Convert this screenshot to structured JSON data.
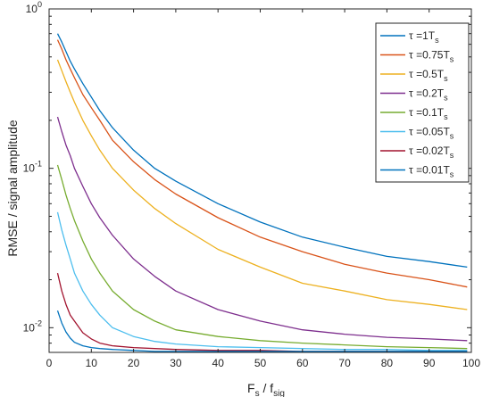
{
  "chart_data": {
    "type": "line",
    "title": "",
    "xlabel": "F",
    "xlabel_sub1": "s",
    "xlabel_mid": " / f",
    "xlabel_sub2": "sig",
    "ylabel": "RMSE / signal amplitude",
    "xlim": [
      0,
      100
    ],
    "ylim": [
      0.007,
      1
    ],
    "yscale": "log",
    "grid": false,
    "legend_position": "top-right",
    "x_ticks": [
      0,
      10,
      20,
      30,
      40,
      50,
      60,
      70,
      80,
      90,
      100
    ],
    "y_ticks": [
      {
        "value": 0.01,
        "base": "10",
        "exp": "-2"
      },
      {
        "value": 0.1,
        "base": "10",
        "exp": "-1"
      },
      {
        "value": 1,
        "base": "10",
        "exp": "0"
      }
    ],
    "x": [
      2,
      3,
      4,
      5,
      6,
      8,
      10,
      12,
      15,
      20,
      25,
      30,
      40,
      50,
      60,
      70,
      80,
      90,
      99
    ],
    "series": [
      {
        "name": "τ =1T",
        "name_sub": "s",
        "color": "#0072BD",
        "values": [
          0.7,
          0.62,
          0.54,
          0.47,
          0.42,
          0.34,
          0.28,
          0.23,
          0.18,
          0.13,
          0.1,
          0.083,
          0.06,
          0.046,
          0.037,
          0.032,
          0.028,
          0.026,
          0.024
        ]
      },
      {
        "name": "τ =0.75T",
        "name_sub": "s",
        "color": "#D95319",
        "values": [
          0.64,
          0.56,
          0.48,
          0.42,
          0.37,
          0.29,
          0.24,
          0.2,
          0.15,
          0.11,
          0.085,
          0.069,
          0.049,
          0.037,
          0.03,
          0.025,
          0.022,
          0.02,
          0.018
        ]
      },
      {
        "name": "τ =0.5T",
        "name_sub": "s",
        "color": "#EDB120",
        "values": [
          0.48,
          0.41,
          0.35,
          0.3,
          0.26,
          0.2,
          0.16,
          0.13,
          0.1,
          0.073,
          0.056,
          0.045,
          0.031,
          0.024,
          0.019,
          0.017,
          0.015,
          0.014,
          0.013
        ]
      },
      {
        "name": "τ =0.2T",
        "name_sub": "s",
        "color": "#7E2F8E",
        "values": [
          0.21,
          0.17,
          0.14,
          0.12,
          0.1,
          0.077,
          0.06,
          0.049,
          0.038,
          0.027,
          0.021,
          0.017,
          0.013,
          0.011,
          0.0097,
          0.0091,
          0.0087,
          0.0085,
          0.0083
        ]
      },
      {
        "name": "τ =0.1T",
        "name_sub": "s",
        "color": "#77AC30",
        "values": [
          0.105,
          0.085,
          0.068,
          0.056,
          0.047,
          0.035,
          0.027,
          0.022,
          0.017,
          0.013,
          0.011,
          0.0097,
          0.0088,
          0.0083,
          0.008,
          0.0078,
          0.0076,
          0.0075,
          0.0074
        ]
      },
      {
        "name": "τ =0.05T",
        "name_sub": "s",
        "color": "#4DBEEE",
        "values": [
          0.053,
          0.041,
          0.033,
          0.027,
          0.022,
          0.017,
          0.014,
          0.012,
          0.01,
          0.0088,
          0.0082,
          0.0079,
          0.0076,
          0.0075,
          0.0074,
          0.0073,
          0.0073,
          0.0072,
          0.0072
        ]
      },
      {
        "name": "τ =0.02T",
        "name_sub": "s",
        "color": "#A2142F",
        "values": [
          0.022,
          0.017,
          0.014,
          0.012,
          0.011,
          0.0093,
          0.0085,
          0.008,
          0.0077,
          0.0075,
          0.0074,
          0.0073,
          0.0072,
          0.0072,
          0.0071,
          0.0071,
          0.0071,
          0.0071,
          0.0071
        ]
      },
      {
        "name": "τ =0.01T",
        "name_sub": "s",
        "color": "#0072BD",
        "values": [
          0.0128,
          0.0107,
          0.0094,
          0.0086,
          0.0081,
          0.0077,
          0.0075,
          0.0074,
          0.0073,
          0.0072,
          0.0071,
          0.0071,
          0.0071,
          0.0071,
          0.0071,
          0.0071,
          0.0071,
          0.0071,
          0.0071
        ]
      }
    ]
  }
}
